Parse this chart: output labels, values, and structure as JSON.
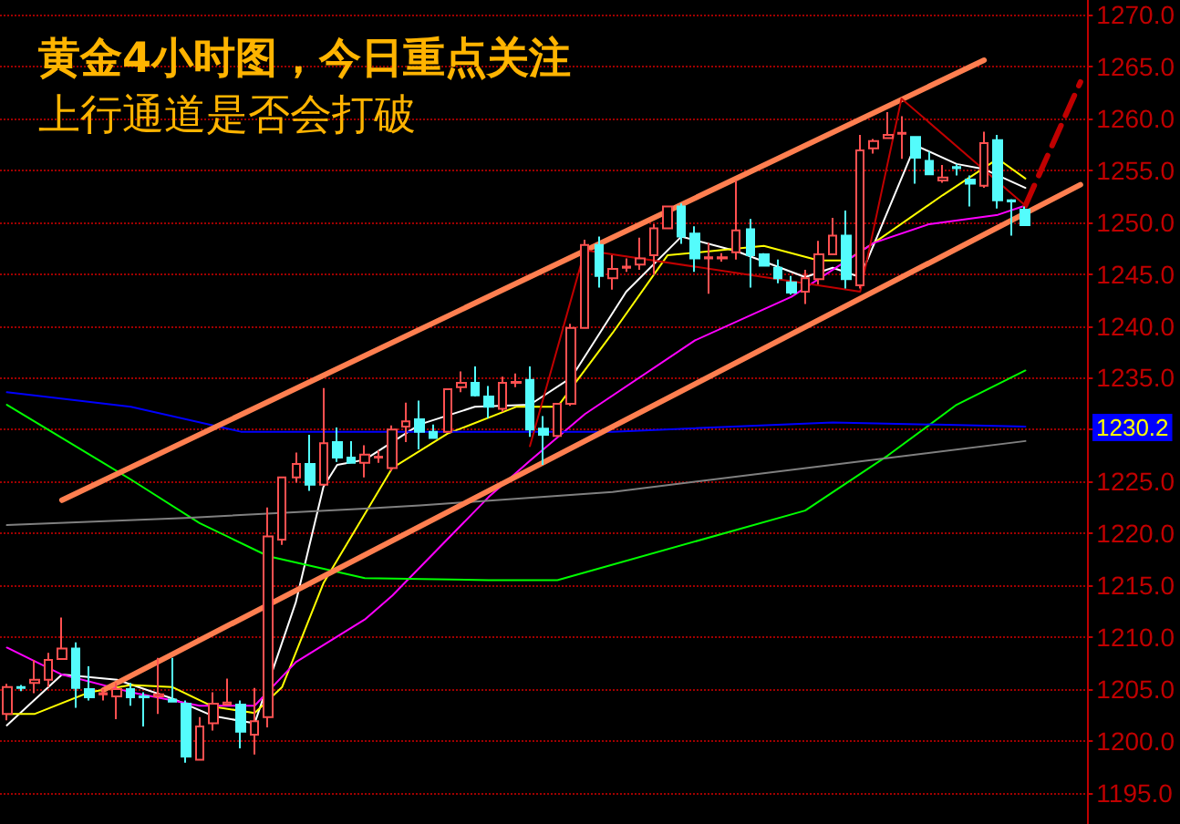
{
  "chart_data": {
    "type": "candlestick",
    "title": "黄金4小时图，今日重点关注",
    "subtitle": "上行通道是否会打破",
    "categories": [
      null,
      null,
      null,
      null,
      null,
      null,
      null,
      null,
      null,
      null,
      null,
      null,
      null,
      null,
      null,
      null,
      null,
      null,
      null,
      null,
      null,
      null,
      null,
      null,
      null,
      null,
      null,
      null,
      null,
      null,
      null,
      null,
      null,
      null,
      null,
      null,
      null,
      null,
      null,
      null,
      null,
      null,
      null,
      null,
      null,
      null,
      null,
      null,
      null,
      null,
      null,
      null,
      null,
      null,
      null,
      null,
      null,
      null,
      null,
      null,
      null,
      null,
      null,
      null,
      null,
      null,
      null,
      null,
      null,
      null,
      null,
      null,
      null,
      null,
      null,
      null,
      null,
      null,
      null
    ],
    "colors": [
      "#ff5050",
      "#54fcfc",
      "#ff5050",
      "#ff5050",
      "#ff5050",
      "#54fcfc",
      "#54fcfc",
      "#ff5050",
      "#ff5050",
      "#54fcfc",
      "#54fcfc",
      "#ff5050",
      "#54fcfc",
      "#54fcfc",
      "#ff5050",
      "#ff5050",
      "#ff5050",
      "#54fcfc",
      "#ff5050",
      "#ff5050",
      "#ff5050",
      "#ff5050",
      "#54fcfc",
      "#ff5050",
      "#54fcfc",
      "#54fcfc",
      "#ff5050",
      "#ff5050",
      "#ff5050",
      "#ff5050",
      "#54fcfc",
      "#54fcfc",
      "#ff5050",
      "#ff5050",
      "#54fcfc",
      "#54fcfc",
      "#ff5050",
      "#ff5050",
      "#54fcfc",
      "#54fcfc",
      "#ff5050",
      "#ff5050",
      "#ff5050",
      "#54fcfc",
      "#ff5050",
      "#ff5050",
      "#ff5050",
      "#ff5050",
      "#ff5050",
      "#54fcfc",
      "#54fcfc",
      "#ff5050",
      "#ff5050",
      "#ff5050",
      "#54fcfc",
      "#54fcfc",
      "#54fcfc",
      "#54fcfc",
      "#ff5050",
      "#ff5050",
      "#ff5050",
      "#54fcfc",
      "#ff5050",
      "#ff5050",
      "#ff5050",
      "#ff5050",
      "#54fcfc",
      "#54fcfc",
      "#ff5050",
      "#54fcfc",
      "#54fcfc",
      "#ff5050",
      "#54fcfc",
      "#54fcfc",
      "#54fcfc",
      null,
      null,
      null,
      null
    ],
    "ohlc": [
      [
        1202.6,
        1205.5,
        1202.0,
        1205.2
      ],
      [
        1205.2,
        1205.4,
        1204.8,
        1205.1
      ],
      [
        1205.6,
        1207.8,
        1204.6,
        1205.9
      ],
      [
        1205.9,
        1208.5,
        1205.2,
        1207.8
      ],
      [
        1207.9,
        1211.9,
        1207.9,
        1208.9
      ],
      [
        1208.9,
        1209.5,
        1203.2,
        1205.1
      ],
      [
        1205.0,
        1207.2,
        1203.9,
        1204.2
      ],
      [
        1204.5,
        1205.0,
        1203.9,
        1204.6
      ],
      [
        1204.3,
        1205.6,
        1202.1,
        1205.0
      ],
      [
        1205.0,
        1205.6,
        1203.4,
        1204.2
      ],
      [
        1204.3,
        1204.7,
        1201.4,
        1204.2
      ],
      [
        1204.3,
        1208.0,
        1202.6,
        1204.5
      ],
      [
        1204.0,
        1208.0,
        1203.8,
        1203.8
      ],
      [
        1203.6,
        1203.9,
        1197.9,
        1198.5
      ],
      [
        1198.2,
        1202.3,
        1198.2,
        1201.4
      ],
      [
        1201.7,
        1204.7,
        1201.0,
        1203.6
      ],
      [
        1203.5,
        1206.0,
        1203.5,
        1203.7
      ],
      [
        1203.5,
        1203.9,
        1199.3,
        1200.9
      ],
      [
        1200.6,
        1205.1,
        1198.7,
        1201.9
      ],
      [
        1202.3,
        1222.5,
        1201.3,
        1219.7
      ],
      [
        1219.4,
        1225.4,
        1218.9,
        1225.4
      ],
      [
        1225.4,
        1227.8,
        1224.9,
        1226.7
      ],
      [
        1226.7,
        1229.5,
        1224.1,
        1224.7
      ],
      [
        1224.7,
        1234.0,
        1224.6,
        1228.7
      ],
      [
        1228.8,
        1230.2,
        1226.9,
        1227.3
      ],
      [
        1227.3,
        1228.9,
        1226.8,
        1226.8
      ],
      [
        1226.8,
        1228.5,
        1225.4,
        1227.6
      ],
      [
        1227.3,
        1228.0,
        1226.8,
        1227.4
      ],
      [
        1226.3,
        1230.4,
        1226.0,
        1230.0
      ],
      [
        1230.3,
        1232.6,
        1228.8,
        1230.8
      ],
      [
        1231.0,
        1232.8,
        1228.1,
        1229.8
      ],
      [
        1229.8,
        1230.5,
        1229.2,
        1229.2
      ],
      [
        1229.8,
        1233.9,
        1229.8,
        1233.9
      ],
      [
        1234.1,
        1235.6,
        1233.6,
        1234.5
      ],
      [
        1234.5,
        1236.1,
        1233.2,
        1233.3
      ],
      [
        1233.2,
        1234.2,
        1231.1,
        1232.2
      ],
      [
        1232.0,
        1235.1,
        1231.7,
        1234.5
      ],
      [
        1234.5,
        1235.4,
        1234.1,
        1234.6
      ],
      [
        1234.8,
        1236.1,
        1229.3,
        1230.0
      ],
      [
        1230.1,
        1231.3,
        1226.6,
        1229.5
      ],
      [
        1229.4,
        1232.5,
        1229.4,
        1232.5
      ],
      [
        1232.5,
        1240.2,
        1232.3,
        1239.8
      ],
      [
        1239.8,
        1248.3,
        1239.8,
        1247.8
      ],
      [
        1247.8,
        1248.6,
        1243.7,
        1244.8
      ],
      [
        1244.6,
        1246.8,
        1243.5,
        1245.5
      ],
      [
        1245.6,
        1246.5,
        1245.2,
        1245.7
      ],
      [
        1245.9,
        1248.5,
        1245.4,
        1246.5
      ],
      [
        1246.8,
        1249.8,
        1244.9,
        1249.4
      ],
      [
        1249.4,
        1251.5,
        1249.4,
        1251.5
      ],
      [
        1251.5,
        1251.8,
        1247.9,
        1248.6
      ],
      [
        1248.9,
        1249.6,
        1245.2,
        1246.5
      ],
      [
        1246.5,
        1248.0,
        1243.1,
        1246.6
      ],
      [
        1246.5,
        1247.0,
        1246.2,
        1246.6
      ],
      [
        1247.1,
        1254.0,
        1246.4,
        1249.2
      ],
      [
        1249.3,
        1250.3,
        1243.7,
        1246.8
      ],
      [
        1246.9,
        1247.0,
        1245.8,
        1245.8
      ],
      [
        1245.6,
        1246.4,
        1244.1,
        1244.6
      ],
      [
        1244.2,
        1244.8,
        1243.0,
        1243.2
      ],
      [
        1243.3,
        1245.4,
        1242.1,
        1244.6
      ],
      [
        1244.5,
        1248.2,
        1244.0,
        1246.9
      ],
      [
        1246.9,
        1250.4,
        1246.9,
        1248.7
      ],
      [
        1248.7,
        1251.1,
        1243.6,
        1244.5
      ],
      [
        1243.9,
        1258.4,
        1243.6,
        1256.9
      ],
      [
        1257.1,
        1258.0,
        1256.6,
        1257.8
      ],
      [
        1258.1,
        1260.6,
        1258.1,
        1258.4
      ],
      [
        1258.5,
        1260.2,
        1256.1,
        1258.6
      ],
      [
        1258.2,
        1258.2,
        1253.7,
        1256.2
      ],
      [
        1255.9,
        1256.8,
        1254.6,
        1254.6
      ],
      [
        1254.0,
        1255.5,
        1253.8,
        1254.3
      ],
      [
        1255.3,
        1255.6,
        1254.5,
        1255.2
      ],
      [
        1254.1,
        1254.5,
        1251.5,
        1253.7
      ],
      [
        1253.5,
        1258.7,
        1253.3,
        1257.6
      ],
      [
        1257.9,
        1258.4,
        1251.3,
        1252.1
      ],
      [
        1252.1,
        1252.2,
        1248.7,
        1252.0
      ],
      [
        1251.2,
        1251.5,
        1249.7,
        1249.7
      ],
      null,
      null,
      null,
      null
    ],
    "series": [
      {
        "type": "line",
        "color": "#ffffff",
        "values": [
          1201.5,
          null,
          null,
          null,
          1206.4,
          null,
          null,
          null,
          1205.9,
          null,
          null,
          null,
          1204.1,
          null,
          null,
          1202.4,
          null,
          null,
          1201.7,
          null,
          null,
          1213.4,
          null,
          1224.5,
          1226.6,
          null,
          1227.1,
          null,
          null,
          null,
          1230.5,
          null,
          null,
          null,
          1232.2,
          null,
          null,
          null,
          1232.4,
          null,
          null,
          1235.0,
          null,
          null,
          null,
          1243.3,
          null,
          null,
          null,
          1248.6,
          null,
          null,
          null,
          1247.2,
          null,
          null,
          null,
          null,
          1244.7,
          null,
          1245.6,
          null,
          1244.7,
          null,
          null,
          null,
          1257.4,
          null,
          null,
          1255.6,
          null,
          1255.1,
          null,
          null,
          1253.3,
          null,
          null,
          null,
          null
        ]
      },
      {
        "type": "line",
        "color": "#ffff00",
        "values": [
          1202.6,
          null,
          1202.6,
          null,
          null,
          null,
          1204.7,
          null,
          null,
          1205.4,
          null,
          null,
          1205.2,
          null,
          null,
          1203.3,
          null,
          null,
          1202.7,
          null,
          1205.2,
          null,
          null,
          1215.2,
          null,
          null,
          null,
          null,
          1226.3,
          null,
          null,
          null,
          1229.6,
          null,
          null,
          null,
          null,
          1232.2,
          null,
          null,
          1232.2,
          null,
          null,
          null,
          1239.3,
          null,
          null,
          null,
          1246.8,
          null,
          null,
          null,
          null,
          null,
          null,
          1247.7,
          null,
          null,
          null,
          1246.3,
          null,
          1246.3,
          null,
          1248.0,
          null,
          null,
          null,
          null,
          1252.6,
          null,
          null,
          null,
          1256.1,
          null,
          1254.2,
          null,
          null,
          null,
          null
        ]
      },
      {
        "type": "line",
        "color": "#ff00ff",
        "values": [
          1209.0,
          null,
          null,
          null,
          1206.4,
          null,
          null,
          null,
          null,
          1204.7,
          null,
          null,
          null,
          null,
          1203.4,
          null,
          null,
          null,
          1203.4,
          null,
          null,
          1207.6,
          null,
          null,
          null,
          null,
          1211.7,
          null,
          1214.0,
          null,
          null,
          null,
          null,
          null,
          null,
          1223.5,
          null,
          null,
          1227.0,
          null,
          null,
          null,
          1231.5,
          null,
          null,
          null,
          null,
          null,
          null,
          null,
          1238.6,
          null,
          null,
          null,
          null,
          null,
          null,
          1242.8,
          null,
          null,
          null,
          null,
          null,
          1248.0,
          null,
          null,
          null,
          1249.8,
          null,
          null,
          null,
          null,
          1250.7,
          null,
          1251.6,
          null,
          null,
          null,
          null
        ]
      },
      {
        "type": "line",
        "color": "#00ff00",
        "values": [
          1232.4,
          null,
          null,
          null,
          null,
          null,
          null,
          null,
          null,
          1225.2,
          null,
          null,
          null,
          null,
          1221.0,
          null,
          null,
          null,
          null,
          1217.8,
          null,
          null,
          null,
          null,
          null,
          null,
          1215.7,
          null,
          null,
          null,
          null,
          null,
          null,
          null,
          null,
          1215.5,
          null,
          null,
          null,
          null,
          1215.5,
          null,
          null,
          null,
          null,
          null,
          null,
          null,
          null,
          null,
          null,
          null,
          null,
          null,
          null,
          null,
          null,
          null,
          1222.2,
          null,
          null,
          null,
          null,
          null,
          1227.5,
          null,
          null,
          null,
          null,
          1232.4,
          null,
          null,
          null,
          null,
          1235.7,
          null,
          null,
          null,
          null
        ]
      },
      {
        "type": "line",
        "color": "#0000ff",
        "values": [
          1233.6,
          null,
          null,
          null,
          null,
          null,
          null,
          null,
          null,
          1232.2,
          null,
          null,
          null,
          null,
          null,
          null,
          null,
          1229.8,
          null,
          null,
          null,
          null,
          null,
          null,
          null,
          null,
          null,
          null,
          null,
          null,
          1229.8,
          null,
          null,
          null,
          null,
          null,
          null,
          null,
          null,
          null,
          null,
          null,
          null,
          null,
          1229.8,
          null,
          null,
          null,
          null,
          null,
          null,
          null,
          null,
          null,
          null,
          null,
          null,
          null,
          null,
          null,
          1230.7,
          null,
          null,
          null,
          null,
          null,
          null,
          null,
          null,
          null,
          null,
          null,
          null,
          null,
          1230.3,
          null,
          null,
          null,
          null
        ]
      },
      {
        "type": "line",
        "color": "#808080",
        "values": [
          1220.8,
          null,
          null,
          null,
          null,
          null,
          null,
          null,
          null,
          null,
          null,
          null,
          null,
          1221.5,
          null,
          null,
          null,
          null,
          null,
          null,
          null,
          null,
          null,
          null,
          null,
          null,
          1222.4,
          null,
          null,
          null,
          1222.7,
          null,
          null,
          null,
          null,
          null,
          null,
          null,
          null,
          null,
          null,
          null,
          null,
          null,
          1224.0,
          null,
          null,
          null,
          null,
          null,
          null,
          null,
          null,
          null,
          null,
          null,
          null,
          null,
          null,
          null,
          null,
          null,
          null,
          null,
          null,
          null,
          null,
          null,
          null,
          null,
          null,
          null,
          null,
          null,
          1228.9,
          null,
          null,
          null,
          null
        ]
      },
      {
        "type": "line",
        "color": "#ff7f50",
        "values": [
          null,
          null,
          null,
          null,
          1223.2,
          null,
          null,
          null,
          null,
          null,
          null,
          null,
          null,
          null,
          null,
          null,
          null,
          null,
          null,
          null,
          null,
          null,
          null,
          null,
          null,
          null,
          null,
          null,
          null,
          null,
          null,
          null,
          null,
          null,
          null,
          null,
          null,
          null,
          null,
          null,
          null,
          null,
          null,
          null,
          null,
          null,
          null,
          null,
          null,
          null,
          null,
          null,
          null,
          null,
          null,
          null,
          null,
          null,
          null,
          null,
          null,
          null,
          null,
          null,
          null,
          null,
          null,
          null,
          null,
          null,
          null,
          1265.6,
          null,
          null,
          null,
          null,
          null,
          null,
          null
        ]
      },
      {
        "type": "line",
        "color": "#ff7f50",
        "values": [
          null,
          null,
          null,
          null,
          null,
          null,
          null,
          1204.9,
          null,
          null,
          null,
          null,
          null,
          null,
          null,
          null,
          null,
          null,
          null,
          null,
          null,
          null,
          null,
          null,
          null,
          null,
          null,
          null,
          null,
          null,
          null,
          null,
          null,
          null,
          null,
          null,
          null,
          null,
          null,
          null,
          null,
          null,
          null,
          null,
          null,
          null,
          null,
          null,
          null,
          null,
          null,
          null,
          null,
          null,
          null,
          null,
          null,
          null,
          null,
          null,
          null,
          null,
          null,
          null,
          null,
          null,
          null,
          null,
          null,
          null,
          null,
          null,
          null,
          null,
          null,
          null,
          null,
          null,
          1253.6
        ]
      },
      {
        "type": "line",
        "color": "#c00000",
        "values": [
          null,
          null,
          null,
          null,
          null,
          null,
          null,
          null,
          null,
          null,
          null,
          null,
          null,
          null,
          null,
          null,
          null,
          null,
          null,
          null,
          null,
          null,
          null,
          null,
          null,
          null,
          null,
          null,
          null,
          null,
          null,
          null,
          null,
          null,
          null,
          null,
          null,
          null,
          1228.4,
          null,
          null,
          null,
          1247.3,
          null,
          null,
          null,
          null,
          null,
          null,
          null,
          null,
          null,
          null,
          null,
          null,
          null,
          null,
          null,
          null,
          null,
          null,
          null,
          1243.3,
          null,
          null,
          1261.9,
          null,
          null,
          null,
          null,
          null,
          null,
          null,
          null,
          1251.6,
          null,
          null,
          null,
          null
        ]
      },
      {
        "type": "line",
        "color": "#c00000",
        "line_style": "dashed",
        "values": [
          null,
          null,
          null,
          null,
          null,
          null,
          null,
          null,
          null,
          null,
          null,
          null,
          null,
          null,
          null,
          null,
          null,
          null,
          null,
          null,
          null,
          null,
          null,
          null,
          null,
          null,
          null,
          null,
          null,
          null,
          null,
          null,
          null,
          null,
          null,
          null,
          null,
          null,
          null,
          null,
          null,
          null,
          null,
          null,
          null,
          null,
          null,
          null,
          null,
          null,
          null,
          null,
          null,
          null,
          null,
          null,
          null,
          null,
          null,
          null,
          null,
          null,
          null,
          null,
          null,
          null,
          null,
          null,
          null,
          null,
          null,
          null,
          null,
          null,
          1251.6,
          null,
          null,
          null,
          1263.5
        ]
      }
    ],
    "ylim": [
      1192,
      1271.4
    ],
    "yticks": [
      {
        "value": 1195,
        "label": "1195.0"
      },
      {
        "value": 1200,
        "label": "1200.0"
      },
      {
        "value": 1205,
        "label": "1205.0"
      },
      {
        "value": 1210,
        "label": "1210.0"
      },
      {
        "value": 1215,
        "label": "1215.0"
      },
      {
        "value": 1220,
        "label": "1220.0"
      },
      {
        "value": 1225,
        "label": "1225.0"
      },
      {
        "value": 1230,
        "label": null
      },
      {
        "value": 1235,
        "label": "1235.0"
      },
      {
        "value": 1240,
        "label": "1240.0"
      },
      {
        "value": 1245,
        "label": "1245.0"
      },
      {
        "value": 1250,
        "label": "1250.0"
      },
      {
        "value": 1255,
        "label": "1255.0"
      },
      {
        "value": 1260,
        "label": "1260.0"
      },
      {
        "value": 1265,
        "label": "1265.0"
      },
      {
        "value": 1270,
        "label": "1270.0"
      }
    ],
    "annotations": [
      {
        "text": "1230.2",
        "y": 1230.2
      }
    ],
    "grid": "y",
    "tick_labels": "y",
    "line_style": "solid"
  }
}
